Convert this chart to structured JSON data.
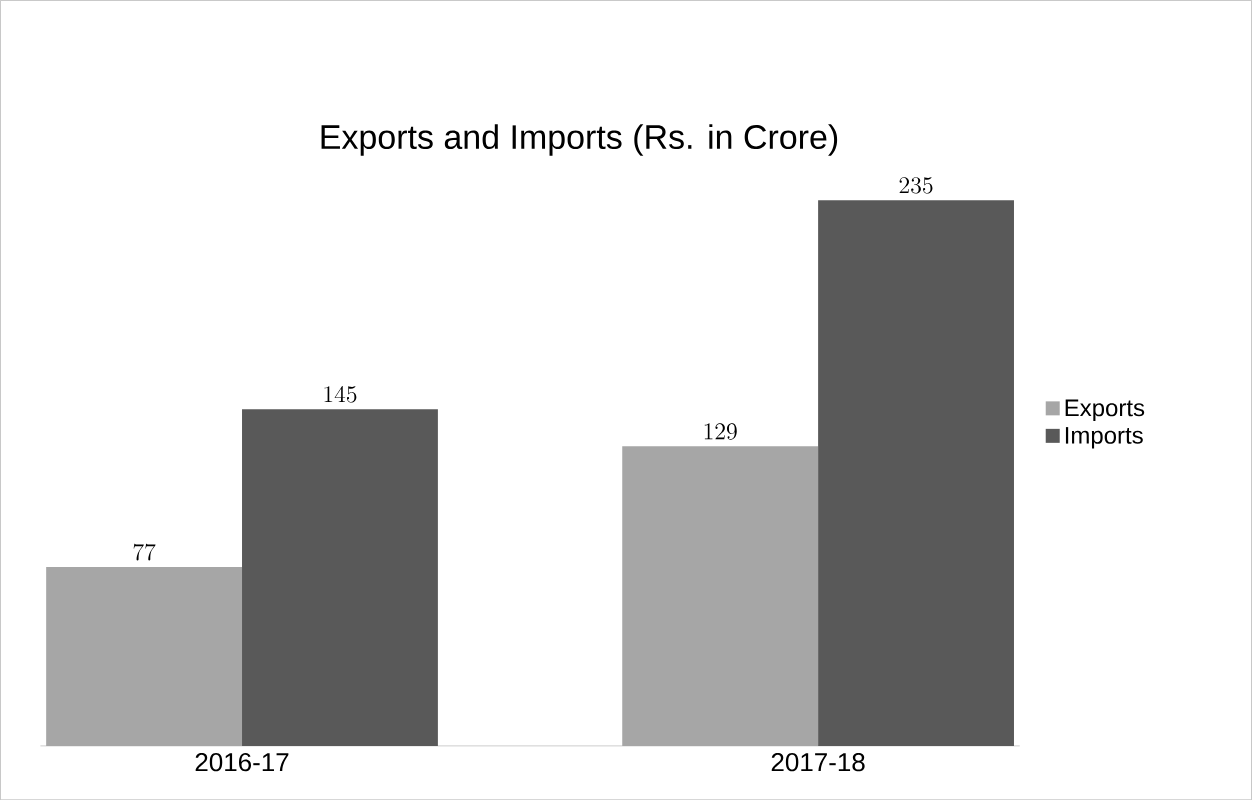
{
  "chart_data": {
    "type": "bar",
    "title": "Exports and Imports (Rs. in Crore)",
    "categories": [
      "2016-17",
      "2017-18"
    ],
    "series": [
      {
        "name": "Exports",
        "color": "#a6a6a6",
        "values": [
          77,
          129
        ]
      },
      {
        "name": "Imports",
        "color": "#595959",
        "values": [
          145,
          235
        ]
      }
    ],
    "data_labels": true,
    "legend": "right"
  }
}
